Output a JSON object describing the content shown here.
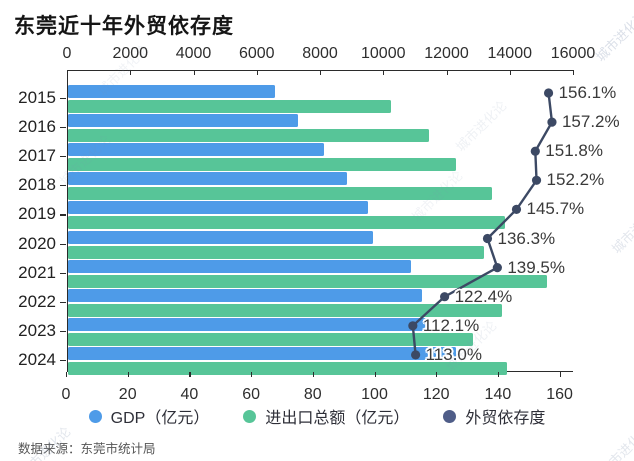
{
  "title": "东莞近十年外贸依存度",
  "source": "数据来源：东莞市统计局",
  "watermark_text": "城市进化论",
  "colors": {
    "gdp_bar": "#4e9be8",
    "trade_bar": "#57c598",
    "line": "#3c4964",
    "legend_ratio_dot": "#4f5d88",
    "axis": "#2b2b2b"
  },
  "legend": [
    {
      "label": "GDP（亿元）",
      "color": "#4e9be8"
    },
    {
      "label": "进出口总额（亿元）",
      "color": "#57c598"
    },
    {
      "label": "外贸依存度",
      "color": "#4f5d88"
    }
  ],
  "chart_data": {
    "type": "bar",
    "orientation": "horizontal",
    "categories": [
      "2015",
      "2016",
      "2017",
      "2018",
      "2019",
      "2020",
      "2021",
      "2022",
      "2023",
      "2024"
    ],
    "series": [
      {
        "name": "GDP（亿元）",
        "type": "bar",
        "color": "#4e9be8",
        "axis": "top",
        "values": [
          6530,
          7260,
          8080,
          8820,
          9480,
          9650,
          10860,
          11200,
          11440,
          12280
        ]
      },
      {
        "name": "进出口总额（亿元）",
        "type": "bar",
        "color": "#57c598",
        "axis": "top",
        "values": [
          10200,
          11420,
          12260,
          13420,
          13820,
          13150,
          15140,
          13710,
          12820,
          13880
        ]
      },
      {
        "name": "外贸依存度",
        "type": "line",
        "color": "#3c4964",
        "axis": "bottom",
        "values": [
          156.1,
          157.2,
          151.8,
          152.2,
          145.7,
          136.3,
          139.5,
          122.4,
          112.1,
          113.0
        ],
        "labels": [
          "156.1%",
          "157.2%",
          "151.8%",
          "152.2%",
          "145.7%",
          "136.3%",
          "139.5%",
          "122.4%",
          "112.1%",
          "113.0%"
        ]
      }
    ],
    "top_axis": {
      "ticks": [
        0,
        2000,
        4000,
        6000,
        8000,
        10000,
        12000,
        14000,
        16000
      ],
      "min": 0,
      "max": 16000
    },
    "bottom_axis": {
      "ticks": [
        0,
        20,
        40,
        60,
        80,
        100,
        120,
        140,
        160
      ],
      "min": 0,
      "max": 160
    },
    "grid": false,
    "legend_position": "bottom"
  }
}
